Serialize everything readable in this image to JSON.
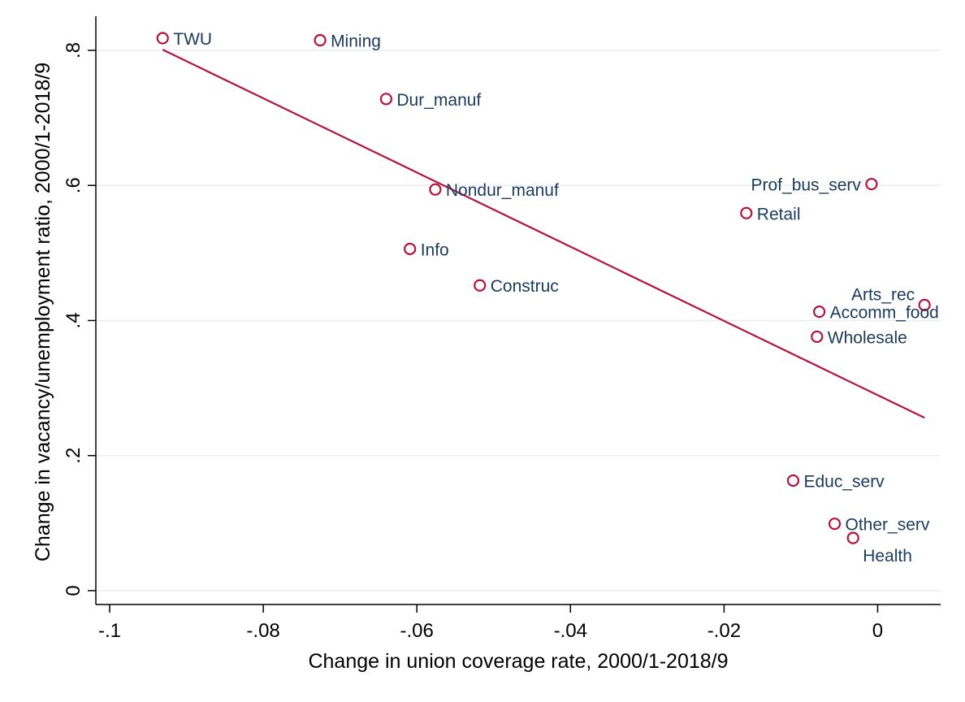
{
  "chart_data": {
    "type": "scatter",
    "title": "",
    "xlabel": "Change in union coverage rate, 2000/1-2018/9",
    "ylabel": "Change in vacancy/unemployment ratio, 2000/1-2018/9",
    "xlim": [
      -0.1018,
      0.0082
    ],
    "ylim": [
      -0.0205,
      0.8505
    ],
    "grid": "horizontal",
    "legend": "none",
    "x_ticks": [
      {
        "value": -0.1,
        "label": "-.1"
      },
      {
        "value": -0.08,
        "label": "-.08"
      },
      {
        "value": -0.06,
        "label": "-.06"
      },
      {
        "value": -0.04,
        "label": "-.04"
      },
      {
        "value": -0.02,
        "label": "-.02"
      },
      {
        "value": 0,
        "label": "0"
      }
    ],
    "y_ticks": [
      {
        "value": 0,
        "label": "0"
      },
      {
        "value": 0.2,
        "label": ".2"
      },
      {
        "value": 0.4,
        "label": ".4"
      },
      {
        "value": 0.6,
        "label": ".6"
      },
      {
        "value": 0.8,
        "label": ".8"
      }
    ],
    "points": [
      {
        "label": "TWU",
        "x": -0.0931,
        "y": 0.818
      },
      {
        "label": "Mining",
        "x": -0.0726,
        "y": 0.815
      },
      {
        "label": "Dur_manuf",
        "x": -0.064,
        "y": 0.728
      },
      {
        "label": "Nondur_manuf",
        "x": -0.0576,
        "y": 0.594
      },
      {
        "label": "Info",
        "x": -0.0609,
        "y": 0.506
      },
      {
        "label": "Construc",
        "x": -0.0518,
        "y": 0.452
      },
      {
        "label": "Prof_bus_serv",
        "x": -0.0008,
        "y": 0.602
      },
      {
        "label": "Retail",
        "x": -0.0171,
        "y": 0.559
      },
      {
        "label": "Arts_rec",
        "x": 0.0061,
        "y": 0.423
      },
      {
        "label": "Accomm_food",
        "x": -0.0076,
        "y": 0.413
      },
      {
        "label": "Wholesale",
        "x": -0.0079,
        "y": 0.376
      },
      {
        "label": "Educ_serv",
        "x": -0.011,
        "y": 0.163
      },
      {
        "label": "Other_serv",
        "x": -0.0056,
        "y": 0.099
      },
      {
        "label": "Health",
        "x": -0.0032,
        "y": 0.078
      }
    ],
    "fit_line": {
      "x": [
        -0.0931,
        0.0061
      ],
      "y": [
        0.801,
        0.256
      ]
    },
    "colors": {
      "marker": "#b5123e",
      "fit": "#b5123e",
      "label": "#1c3a5e",
      "grid": "#e8eef1",
      "axis": "#000000"
    }
  }
}
